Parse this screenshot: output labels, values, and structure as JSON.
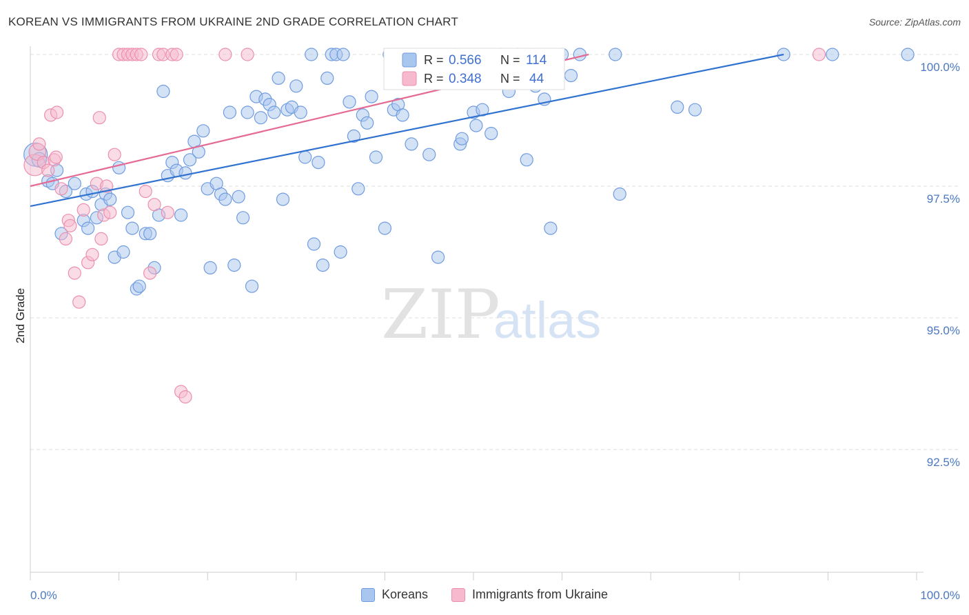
{
  "title": "KOREAN VS IMMIGRANTS FROM UKRAINE 2ND GRADE CORRELATION CHART",
  "source": "Source: ZipAtlas.com",
  "watermark": {
    "zip": "ZIP",
    "atlas": "atlas"
  },
  "colors": {
    "blue_fill": "#a9c6ee",
    "blue_stroke": "#6f9be0",
    "blue_line": "#2f72d0",
    "pink_fill": "#f6b9cd",
    "pink_stroke": "#eb8fae",
    "pink_line": "#e56a94",
    "tick_label": "#4a78c2",
    "grid": "#dddddd"
  },
  "legend": {
    "r_label": "R =",
    "n_label": "N =",
    "series": [
      {
        "r": "0.566",
        "n": "114"
      },
      {
        "r": "0.348",
        "n": "44"
      }
    ]
  },
  "chart_data": {
    "type": "scatter",
    "title": "KOREAN VS IMMIGRANTS FROM UKRAINE 2ND GRADE CORRELATION CHART",
    "xlabel": "",
    "ylabel": "2nd Grade",
    "xlim": [
      0,
      100
    ],
    "ylim": [
      90.2,
      100.4
    ],
    "x_tick_labels": [
      "0.0%",
      "100.0%"
    ],
    "y_ticks": [
      {
        "value": 92.5,
        "label": "92.5%"
      },
      {
        "value": 95.0,
        "label": "95.0%"
      },
      {
        "value": 97.5,
        "label": "97.5%"
      },
      {
        "value": 100.0,
        "label": "100.0%"
      }
    ],
    "grid": true,
    "series": [
      {
        "name": "Koreans",
        "color": "blue",
        "trend": {
          "x": [
            0,
            85
          ],
          "y": [
            97.12,
            100.0
          ]
        },
        "points": [
          [
            0.6,
            98.1,
            10
          ],
          [
            1,
            98.0,
            6
          ],
          [
            2,
            97.6,
            5
          ],
          [
            3,
            97.8,
            5
          ],
          [
            2.5,
            97.55,
            5
          ],
          [
            4,
            97.4,
            5
          ],
          [
            3.5,
            96.6,
            5
          ],
          [
            5,
            97.55,
            5
          ],
          [
            6,
            96.85,
            5
          ],
          [
            6.3,
            97.35,
            5
          ],
          [
            6.5,
            96.7,
            5
          ],
          [
            7,
            97.4,
            5
          ],
          [
            7.5,
            96.9,
            5
          ],
          [
            8,
            97.15,
            5
          ],
          [
            8.5,
            97.35,
            5
          ],
          [
            9,
            97.25,
            5
          ],
          [
            9.5,
            96.15,
            5
          ],
          [
            10,
            97.85,
            5
          ],
          [
            10.5,
            96.25,
            5
          ],
          [
            11,
            97.0,
            5
          ],
          [
            11.5,
            96.7,
            5
          ],
          [
            12,
            95.55,
            5
          ],
          [
            12.3,
            95.6,
            5
          ],
          [
            13,
            96.6,
            5
          ],
          [
            13.5,
            96.6,
            5
          ],
          [
            14,
            95.95,
            5
          ],
          [
            14.5,
            96.95,
            5
          ],
          [
            15,
            99.3,
            5
          ],
          [
            15.5,
            97.7,
            5
          ],
          [
            16,
            97.95,
            5
          ],
          [
            16.5,
            97.8,
            5
          ],
          [
            17,
            96.95,
            5
          ],
          [
            17.5,
            97.75,
            5
          ],
          [
            18,
            98.0,
            5
          ],
          [
            18.5,
            98.35,
            5
          ],
          [
            19,
            98.15,
            5
          ],
          [
            19.5,
            98.55,
            5
          ],
          [
            20,
            97.45,
            5
          ],
          [
            20.3,
            95.95,
            5
          ],
          [
            21,
            97.55,
            5
          ],
          [
            21.5,
            97.35,
            5
          ],
          [
            22,
            97.25,
            5
          ],
          [
            22.5,
            98.9,
            5
          ],
          [
            23,
            96.0,
            5
          ],
          [
            23.5,
            97.3,
            5
          ],
          [
            24,
            96.9,
            5
          ],
          [
            24.5,
            98.9,
            5
          ],
          [
            25,
            95.6,
            5
          ],
          [
            25.5,
            99.2,
            5
          ],
          [
            26,
            98.8,
            5
          ],
          [
            26.5,
            99.15,
            5
          ],
          [
            27,
            99.05,
            5
          ],
          [
            27.5,
            98.9,
            5
          ],
          [
            28,
            99.55,
            5
          ],
          [
            28.5,
            97.25,
            5
          ],
          [
            29,
            98.95,
            5
          ],
          [
            29.5,
            99.0,
            5
          ],
          [
            30,
            99.4,
            5
          ],
          [
            30.5,
            98.9,
            5
          ],
          [
            31,
            98.05,
            5
          ],
          [
            31.7,
            100.0,
            5
          ],
          [
            32,
            96.4,
            5
          ],
          [
            32.5,
            97.95,
            5
          ],
          [
            33,
            96.0,
            5
          ],
          [
            33.5,
            99.55,
            5
          ],
          [
            34,
            100.0,
            5
          ],
          [
            34.5,
            100.0,
            5
          ],
          [
            35,
            96.25,
            5
          ],
          [
            35.3,
            100.0,
            5
          ],
          [
            36,
            99.1,
            5
          ],
          [
            36.5,
            98.45,
            5
          ],
          [
            37,
            97.45,
            5
          ],
          [
            37.5,
            98.85,
            5
          ],
          [
            38,
            98.7,
            5
          ],
          [
            38.5,
            99.2,
            5
          ],
          [
            39,
            98.05,
            5
          ],
          [
            40,
            96.7,
            5
          ],
          [
            40.5,
            100.0,
            5
          ],
          [
            41,
            98.95,
            5
          ],
          [
            41.5,
            99.05,
            5
          ],
          [
            42,
            98.85,
            5
          ],
          [
            43,
            98.3,
            5
          ],
          [
            45,
            98.1,
            5
          ],
          [
            46,
            96.15,
            5
          ],
          [
            48,
            100.0,
            5
          ],
          [
            48.5,
            98.3,
            5
          ],
          [
            48.7,
            98.4,
            5
          ],
          [
            50,
            98.9,
            5
          ],
          [
            50.3,
            98.65,
            5
          ],
          [
            51,
            98.95,
            5
          ],
          [
            52,
            98.5,
            5
          ],
          [
            53,
            100.0,
            5
          ],
          [
            54,
            99.3,
            5
          ],
          [
            55,
            100.0,
            5
          ],
          [
            56,
            98.0,
            5
          ],
          [
            56.5,
            100.0,
            5
          ],
          [
            57,
            99.4,
            5
          ],
          [
            58,
            99.15,
            5
          ],
          [
            58.7,
            96.7,
            5
          ],
          [
            59,
            99.6,
            5
          ],
          [
            60,
            100.0,
            5
          ],
          [
            61,
            99.6,
            5
          ],
          [
            62,
            100.0,
            5
          ],
          [
            66,
            100.0,
            5
          ],
          [
            66.5,
            97.35,
            5
          ],
          [
            73,
            99.0,
            5
          ],
          [
            75,
            98.95,
            5
          ],
          [
            85,
            100.0,
            5
          ],
          [
            90.5,
            100.0,
            5
          ],
          [
            99,
            100.0,
            5
          ]
        ]
      },
      {
        "name": "Immigrants from Ukraine",
        "color": "pink",
        "trend": {
          "x": [
            0,
            63
          ],
          "y": [
            97.5,
            100.0
          ]
        },
        "points": [
          [
            0.5,
            97.9,
            9
          ],
          [
            0.8,
            98.15,
            7
          ],
          [
            1,
            98.3,
            5
          ],
          [
            1.5,
            97.95,
            5
          ],
          [
            2,
            97.8,
            5
          ],
          [
            2.3,
            98.85,
            5
          ],
          [
            2.7,
            98.0,
            5
          ],
          [
            2.9,
            98.05,
            5
          ],
          [
            3,
            98.9,
            5
          ],
          [
            3.5,
            97.45,
            5
          ],
          [
            4,
            96.5,
            5
          ],
          [
            4.3,
            96.85,
            5
          ],
          [
            4.5,
            96.75,
            5
          ],
          [
            5,
            95.85,
            5
          ],
          [
            5.5,
            95.3,
            5
          ],
          [
            6,
            97.05,
            5
          ],
          [
            6.5,
            96.05,
            5
          ],
          [
            7,
            96.2,
            5
          ],
          [
            7.5,
            97.55,
            5
          ],
          [
            7.8,
            98.8,
            5
          ],
          [
            8,
            96.5,
            5
          ],
          [
            8.3,
            96.95,
            5
          ],
          [
            8.6,
            97.5,
            5
          ],
          [
            9,
            97.0,
            5
          ],
          [
            9.5,
            98.1,
            5
          ],
          [
            10,
            100.0,
            5
          ],
          [
            10.5,
            100.0,
            5
          ],
          [
            11,
            100.0,
            5
          ],
          [
            11.5,
            100.0,
            5
          ],
          [
            12,
            100.0,
            5
          ],
          [
            12.5,
            100.0,
            5
          ],
          [
            13,
            97.4,
            5
          ],
          [
            13.5,
            95.85,
            5
          ],
          [
            14,
            97.15,
            5
          ],
          [
            14.5,
            100.0,
            5
          ],
          [
            15,
            100.0,
            5
          ],
          [
            15.5,
            97.0,
            5
          ],
          [
            16,
            100.0,
            5
          ],
          [
            16.5,
            100.0,
            5
          ],
          [
            17,
            93.6,
            5
          ],
          [
            17.5,
            93.5,
            5
          ],
          [
            22,
            100.0,
            5
          ],
          [
            24.5,
            100.0,
            5
          ],
          [
            89,
            100.0,
            5
          ]
        ]
      }
    ]
  },
  "bottom_legend": [
    {
      "label": "Koreans"
    },
    {
      "label": "Immigrants from Ukraine"
    }
  ]
}
